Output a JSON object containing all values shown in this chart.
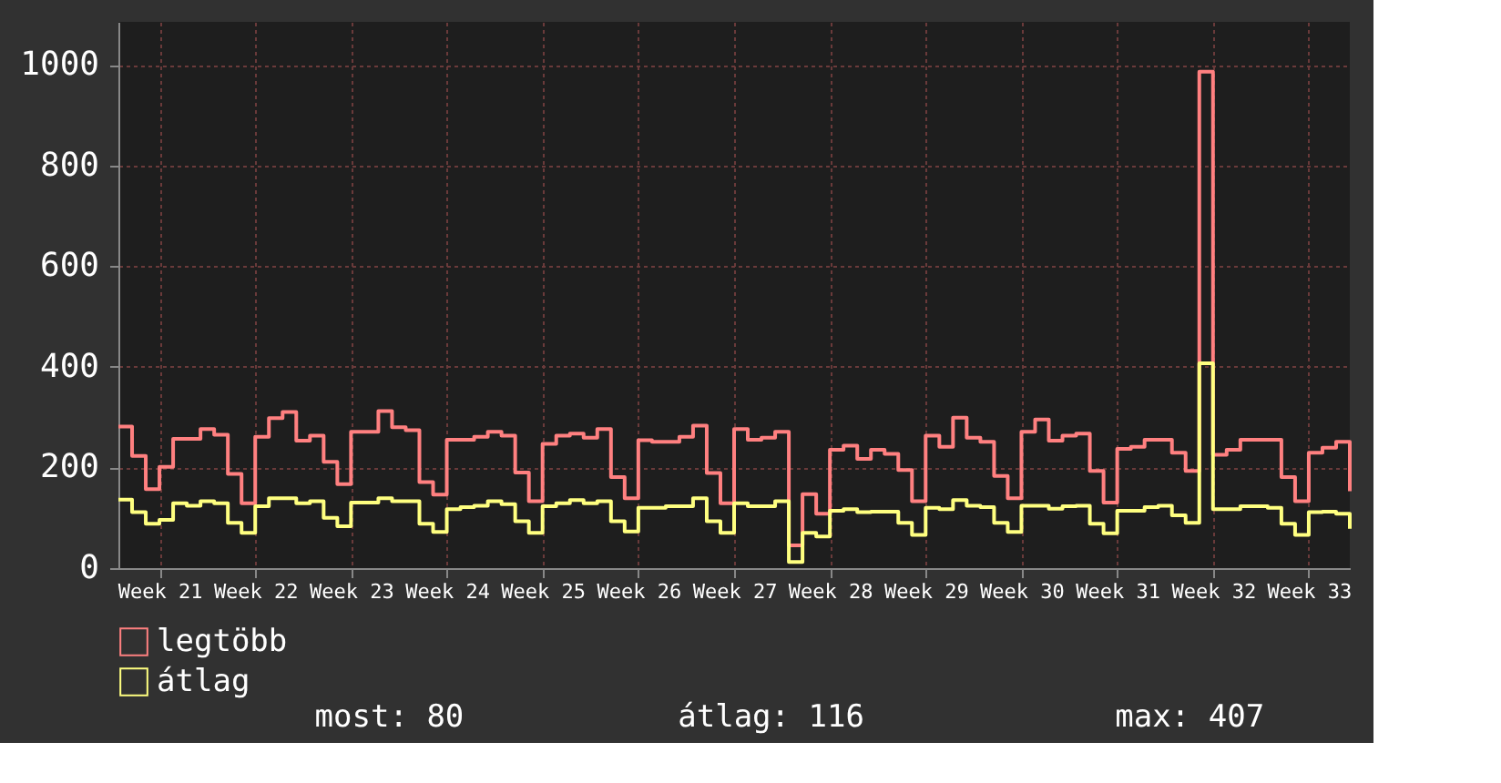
{
  "chart_data": {
    "type": "step",
    "ylim": [
      0,
      1085
    ],
    "categories": [
      null,
      null,
      null,
      "Week 21",
      null,
      null,
      null,
      null,
      null,
      null,
      "Week 22",
      null,
      null,
      null,
      null,
      null,
      null,
      "Week 23",
      null,
      null,
      null,
      null,
      null,
      null,
      "Week 24",
      null,
      null,
      null,
      null,
      null,
      null,
      "Week 25",
      null,
      null,
      null,
      null,
      null,
      null,
      "Week 26",
      null,
      null,
      null,
      null,
      null,
      null,
      "Week 27",
      null,
      null,
      null,
      null,
      null,
      null,
      "Week 28",
      null,
      null,
      null,
      null,
      null,
      null,
      "Week 29",
      null,
      null,
      null,
      null,
      null,
      null,
      "Week 30",
      null,
      null,
      null,
      null,
      null,
      null,
      "Week 31",
      null,
      null,
      null,
      null,
      null,
      null,
      "Week 32",
      null,
      null,
      null,
      null,
      null,
      null,
      "Week 33",
      null,
      null,
      null
    ],
    "yticks": [
      0,
      200,
      400,
      600,
      800,
      {
        "value": 1000,
        "label": "1000"
      }
    ],
    "grid": true,
    "legend": "bottom",
    "series": [
      {
        "name": "legtöbb",
        "color": "#ff8080",
        "values": [
          281,
          223,
          157,
          201,
          257,
          257,
          276,
          265,
          187,
          129,
          261,
          298,
          310,
          253,
          263,
          211,
          167,
          271,
          271,
          312,
          280,
          274,
          171,
          146,
          255,
          255,
          261,
          271,
          263,
          190,
          133,
          247,
          263,
          267,
          259,
          276,
          181,
          139,
          254,
          251,
          251,
          261,
          283,
          189,
          129,
          276,
          255,
          259,
          271,
          45,
          147,
          108,
          235,
          243,
          217,
          235,
          227,
          195,
          133,
          263,
          241,
          299,
          259,
          251,
          183,
          139,
          271,
          295,
          253,
          263,
          267,
          193,
          130,
          237,
          241,
          255,
          255,
          229,
          193,
          986,
          225,
          235,
          255,
          255,
          255,
          181,
          133,
          229,
          239,
          251,
          153
        ]
      },
      {
        "name": "átlag",
        "color": "#ffff80",
        "values": [
          136,
          111,
          88,
          96,
          129,
          124,
          133,
          129,
          90,
          70,
          123,
          139,
          139,
          129,
          133,
          100,
          83,
          130,
          130,
          139,
          133,
          133,
          88,
          72,
          117,
          121,
          124,
          133,
          127,
          93,
          70,
          123,
          129,
          135,
          129,
          133,
          93,
          73,
          120,
          120,
          123,
          123,
          139,
          93,
          70,
          129,
          123,
          123,
          133,
          12,
          70,
          63,
          114,
          117,
          111,
          112,
          112,
          90,
          66,
          120,
          117,
          135,
          124,
          121,
          90,
          72,
          124,
          124,
          118,
          123,
          124,
          88,
          69,
          114,
          114,
          121,
          124,
          105,
          90,
          407,
          117,
          117,
          123,
          123,
          120,
          88,
          66,
          111,
          112,
          108,
          78
        ]
      }
    ],
    "annotations": [
      "most: 80",
      "átlag: 116",
      "max: 407"
    ]
  }
}
